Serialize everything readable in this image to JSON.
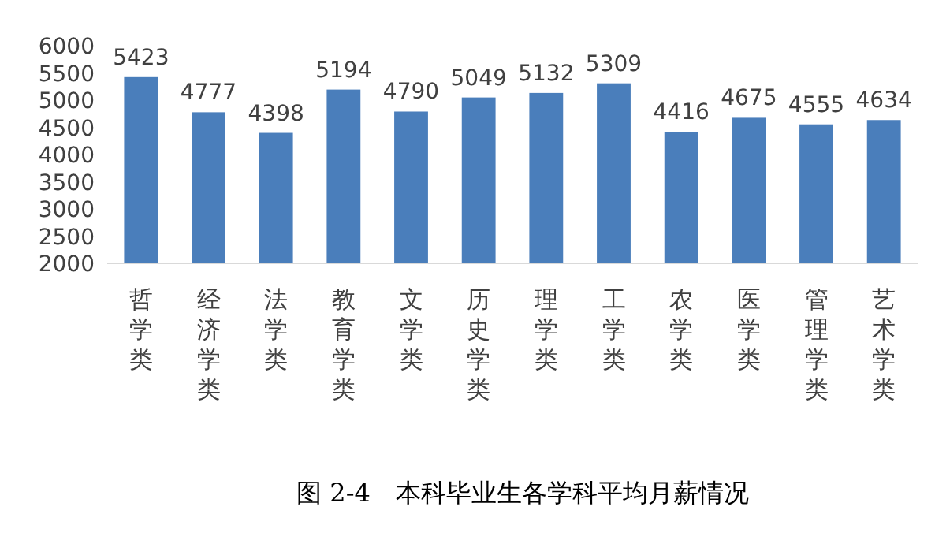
{
  "chart_data": {
    "type": "bar",
    "title": "图 2-4　本科毕业生各学科平均月薪情况",
    "categories": [
      "哲学类",
      "经济学类",
      "法学类",
      "教育学类",
      "文学类",
      "历史学类",
      "理学类",
      "工学类",
      "农学类",
      "医学类",
      "管理学类",
      "艺术学类"
    ],
    "values": [
      5423,
      4777,
      4398,
      5194,
      4790,
      5049,
      5132,
      5309,
      4416,
      4675,
      4555,
      4634
    ],
    "color": "#4a7ebb",
    "ylim": [
      2000,
      6000
    ],
    "yticks": [
      2000,
      2500,
      3000,
      3500,
      4000,
      4500,
      5000,
      5500,
      6000
    ],
    "data_labels": true
  }
}
